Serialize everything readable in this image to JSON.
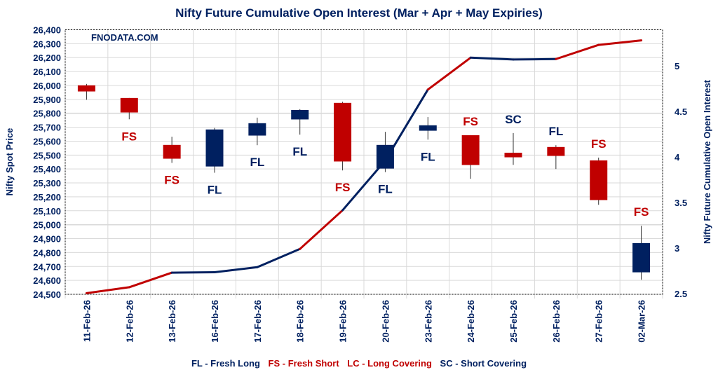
{
  "chart_data": {
    "type": "candlestick+line",
    "title": "Nifty Future Cumulative Open Interest (Mar + Apr + May Expiries)",
    "watermark": "FNODATA.COM",
    "ylabel_left": "Nifty Spot Price",
    "ylabel_right": "Nifty Future Cumulative Open Interest",
    "ylim_left": [
      24500,
      26400
    ],
    "yticks_left": [
      "24,500",
      "24,600",
      "24,700",
      "24,800",
      "24,900",
      "25,000",
      "25,100",
      "25,200",
      "25,300",
      "25,400",
      "25,500",
      "25,600",
      "25,700",
      "25,800",
      "25,900",
      "26,000",
      "26,100",
      "26,200",
      "26,300",
      "26,400"
    ],
    "ylim_right": [
      2.5,
      5.4
    ],
    "yticks_right": [
      "2.5",
      "3",
      "3.5",
      "4",
      "4.5",
      "5"
    ],
    "grid": true,
    "categories": [
      "11-Feb-26",
      "12-Feb-26",
      "13-Feb-26",
      "16-Feb-26",
      "17-Feb-26",
      "18-Feb-26",
      "19-Feb-26",
      "20-Feb-26",
      "23-Feb-26",
      "24-Feb-26",
      "25-Feb-26",
      "26-Feb-26",
      "27-Feb-26",
      "02-Mar-26"
    ],
    "ohlc": [
      {
        "open": 26001,
        "high": 26011,
        "low": 25897,
        "close": 25957
      },
      {
        "open": 25910,
        "high": 25910,
        "low": 25757,
        "close": 25806
      },
      {
        "open": 25573,
        "high": 25632,
        "low": 25444,
        "close": 25474
      },
      {
        "open": 25418,
        "high": 25695,
        "low": 25373,
        "close": 25684
      },
      {
        "open": 25640,
        "high": 25769,
        "low": 25571,
        "close": 25729
      },
      {
        "open": 25756,
        "high": 25830,
        "low": 25647,
        "close": 25824
      },
      {
        "open": 25875,
        "high": 25883,
        "low": 25390,
        "close": 25454
      },
      {
        "open": 25403,
        "high": 25667,
        "low": 25378,
        "close": 25573
      },
      {
        "open": 25675,
        "high": 25773,
        "low": 25611,
        "close": 25714
      },
      {
        "open": 25643,
        "high": 25643,
        "low": 25330,
        "close": 25429
      },
      {
        "open": 25517,
        "high": 25658,
        "low": 25430,
        "close": 25484
      },
      {
        "open": 25558,
        "high": 25571,
        "low": 25400,
        "close": 25494
      },
      {
        "open": 25462,
        "high": 25482,
        "low": 25143,
        "close": 25177
      },
      {
        "open": 24658,
        "high": 24992,
        "low": 24605,
        "close": 24868
      }
    ],
    "open_interest": [
      2.505,
      2.57,
      2.73,
      2.735,
      2.79,
      2.99,
      3.415,
      3.96,
      4.74,
      5.09,
      5.07,
      5.075,
      5.23,
      5.28
    ],
    "signals": [
      {
        "label": "",
        "position": "below"
      },
      {
        "label": "FS",
        "position": "below"
      },
      {
        "label": "FS",
        "position": "below"
      },
      {
        "label": "FL",
        "position": "below"
      },
      {
        "label": "FL",
        "position": "below"
      },
      {
        "label": "FL",
        "position": "below"
      },
      {
        "label": "FS",
        "position": "below"
      },
      {
        "label": "FL",
        "position": "below"
      },
      {
        "label": "FL",
        "position": "below"
      },
      {
        "label": "FS",
        "position": "above"
      },
      {
        "label": "SC",
        "position": "above"
      },
      {
        "label": "FL",
        "position": "above"
      },
      {
        "label": "FS",
        "position": "above"
      },
      {
        "label": "FS",
        "position": "above"
      }
    ],
    "legend": [
      {
        "code": "FL",
        "text": "FL - Fresh Long",
        "color": "#002060"
      },
      {
        "code": "FS",
        "text": "FS - Fresh Short",
        "color": "#C00000"
      },
      {
        "code": "LC",
        "text": "LC - Long Covering",
        "color": "#C00000"
      },
      {
        "code": "SC",
        "text": "SC - Short Covering",
        "color": "#002060"
      }
    ],
    "colors": {
      "up": "#002060",
      "down": "#C00000",
      "long_side": "#002060",
      "short_side": "#C00000",
      "grid": "#D9D9D9"
    }
  }
}
